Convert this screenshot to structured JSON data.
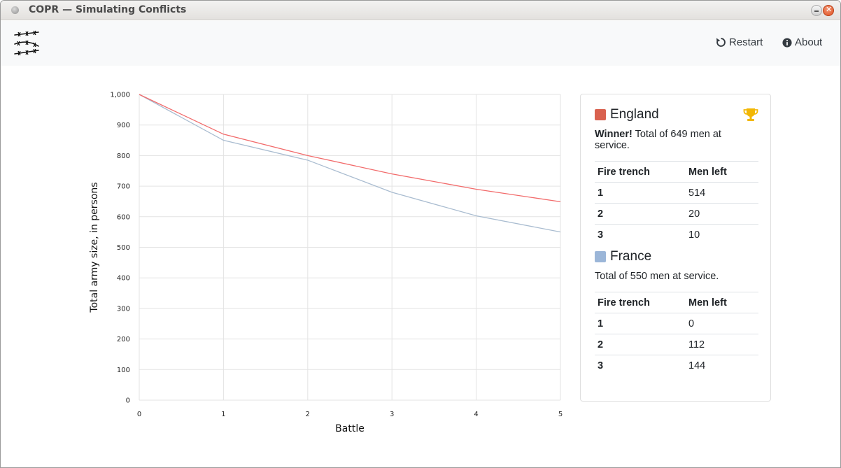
{
  "window": {
    "title": "COPR — Simulating Conflicts"
  },
  "navbar": {
    "logo_icon": "barbed-wire-logo",
    "restart_label": "Restart",
    "restart_icon": "restart-icon",
    "about_label": "About",
    "about_icon": "info-icon"
  },
  "chart_data": {
    "type": "line",
    "x": [
      0,
      1,
      2,
      3,
      4,
      5
    ],
    "x_tick_labels": [
      "0",
      "1",
      "2",
      "3",
      "4",
      "5"
    ],
    "y_tick_labels": [
      "0",
      "100",
      "200",
      "300",
      "400",
      "500",
      "600",
      "700",
      "800",
      "900",
      "1,000"
    ],
    "xlabel": "Battle",
    "ylabel": "Total army size, in persons",
    "xlim": [
      0,
      5
    ],
    "ylim": [
      0,
      1000
    ],
    "grid": true,
    "series": [
      {
        "name": "England",
        "color": "#f26b6b",
        "values": [
          1000,
          870,
          800,
          740,
          690,
          649
        ]
      },
      {
        "name": "France",
        "color": "#a9bcd0",
        "values": [
          1000,
          850,
          785,
          680,
          603,
          550
        ]
      }
    ]
  },
  "results": {
    "england": {
      "name": "England",
      "color": "#d9614f",
      "winner_label": "Winner!",
      "summary": " Total of 649 men at service.",
      "trophy_icon": "trophy-icon",
      "header_trench": "Fire trench",
      "header_men": "Men left",
      "rows": [
        {
          "trench": "1",
          "men": "514"
        },
        {
          "trench": "2",
          "men": "20"
        },
        {
          "trench": "3",
          "men": "10"
        }
      ]
    },
    "france": {
      "name": "France",
      "color": "#9bb6d8",
      "summary": "Total of 550 men at service.",
      "header_trench": "Fire trench",
      "header_men": "Men left",
      "rows": [
        {
          "trench": "1",
          "men": "0"
        },
        {
          "trench": "2",
          "men": "112"
        },
        {
          "trench": "3",
          "men": "144"
        }
      ]
    }
  }
}
